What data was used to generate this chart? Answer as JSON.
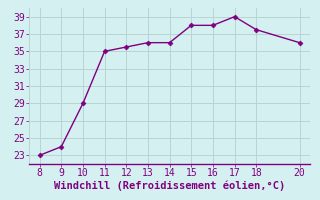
{
  "x": [
    8,
    9,
    10,
    11,
    12,
    13,
    14,
    15,
    16,
    17,
    18,
    20
  ],
  "y": [
    23.0,
    24.0,
    29.0,
    35.0,
    35.5,
    36.0,
    36.0,
    38.0,
    38.0,
    39.0,
    37.5,
    36.0
  ],
  "xlim": [
    7.5,
    20.5
  ],
  "ylim": [
    22,
    40
  ],
  "xticks": [
    8,
    9,
    10,
    11,
    12,
    13,
    14,
    15,
    16,
    17,
    18,
    20
  ],
  "yticks": [
    23,
    25,
    27,
    29,
    31,
    33,
    35,
    37,
    39
  ],
  "xlabel": "Windchill (Refroidissement éolien,°C)",
  "line_color": "#800080",
  "marker_color": "#800080",
  "bg_color": "#d4f0f0",
  "grid_color": "#b8d4d4",
  "tick_label_color": "#800080",
  "xlabel_color": "#800080",
  "tick_fontsize": 7,
  "xlabel_fontsize": 7.5,
  "bottom_border_color": "#800080"
}
